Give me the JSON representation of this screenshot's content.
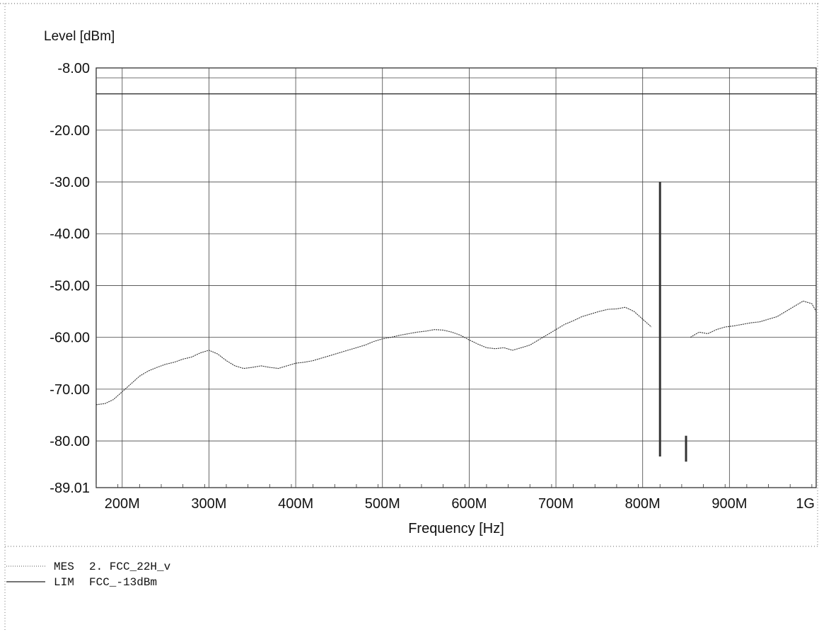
{
  "chart_data": {
    "type": "line",
    "title": "",
    "ylabel": "Level [dBm]",
    "xlabel": "Frequency [Hz]",
    "xlim": [
      170000000,
      1000000000
    ],
    "ylim": [
      -89.01,
      -8.0
    ],
    "x_ticks": [
      {
        "value": 200000000,
        "label": "200M"
      },
      {
        "value": 300000000,
        "label": "300M"
      },
      {
        "value": 400000000,
        "label": "400M"
      },
      {
        "value": 500000000,
        "label": "500M"
      },
      {
        "value": 600000000,
        "label": "600M"
      },
      {
        "value": 700000000,
        "label": "700M"
      },
      {
        "value": 800000000,
        "label": "800M"
      },
      {
        "value": 900000000,
        "label": "900M"
      },
      {
        "value": 1000000000,
        "label": "1G"
      }
    ],
    "y_ticks": [
      {
        "value": -8.0,
        "label": "-8.00"
      },
      {
        "value": -20.0,
        "label": "-20.00"
      },
      {
        "value": -30.0,
        "label": "-30.00"
      },
      {
        "value": -40.0,
        "label": "-40.00"
      },
      {
        "value": -50.0,
        "label": "-50.00"
      },
      {
        "value": -60.0,
        "label": "-60.00"
      },
      {
        "value": -70.0,
        "label": "-70.00"
      },
      {
        "value": -80.0,
        "label": "-80.00"
      },
      {
        "value": -89.01,
        "label": "-89.01"
      }
    ],
    "grid": true,
    "legend_position": "bottom-left",
    "series": [
      {
        "name": "MES",
        "legend_prefix": "MES",
        "legend_text": "2. FCC_22H_v",
        "style": "dotted",
        "segments": [
          {
            "x": [
              170000000,
              180000000,
              190000000,
              200000000,
              210000000,
              220000000,
              230000000,
              240000000,
              250000000,
              260000000,
              270000000,
              280000000,
              290000000,
              300000000,
              310000000,
              320000000,
              330000000,
              340000000,
              350000000,
              360000000,
              370000000,
              380000000,
              390000000,
              400000000,
              410000000,
              420000000,
              430000000,
              440000000,
              450000000,
              460000000,
              470000000,
              480000000,
              490000000,
              500000000,
              510000000,
              520000000,
              530000000,
              540000000,
              550000000,
              560000000,
              570000000,
              580000000,
              590000000,
              600000000,
              610000000,
              620000000,
              630000000,
              640000000,
              650000000,
              660000000,
              670000000,
              680000000,
              690000000,
              700000000,
              710000000,
              720000000,
              730000000,
              740000000,
              750000000,
              760000000,
              770000000,
              780000000,
              790000000,
              800000000,
              810000000
            ],
            "y": [
              -73.0,
              -72.8,
              -72.0,
              -70.5,
              -69.0,
              -67.5,
              -66.5,
              -65.8,
              -65.2,
              -64.8,
              -64.2,
              -63.8,
              -63.0,
              -62.5,
              -63.2,
              -64.5,
              -65.5,
              -66.0,
              -65.8,
              -65.5,
              -65.8,
              -66.0,
              -65.5,
              -65.0,
              -64.8,
              -64.5,
              -64.0,
              -63.5,
              -63.0,
              -62.5,
              -62.0,
              -61.5,
              -60.8,
              -60.3,
              -60.0,
              -59.6,
              -59.3,
              -59.0,
              -58.8,
              -58.5,
              -58.6,
              -59.0,
              -59.6,
              -60.5,
              -61.3,
              -62.0,
              -62.2,
              -62.0,
              -62.5,
              -62.0,
              -61.5,
              -60.5,
              -59.5,
              -58.5,
              -57.5,
              -56.8,
              -56.0,
              -55.5,
              -55.0,
              -54.6,
              -54.5,
              -54.2,
              -55.0,
              -56.5,
              -58.0
            ]
          },
          {
            "x": [
              820000000,
              820000000,
              820000000,
              820000000
            ],
            "y": [
              -30.0,
              -70.0,
              -80.0,
              -83.0
            ]
          },
          {
            "x": [
              850000000,
              850000000
            ],
            "y": [
              -79.0,
              -84.0
            ]
          },
          {
            "x": [
              855000000,
              865000000,
              875000000,
              885000000,
              895000000,
              905000000,
              915000000,
              925000000,
              935000000,
              945000000,
              955000000,
              965000000,
              975000000,
              985000000,
              995000000,
              1000000000
            ],
            "y": [
              -60.0,
              -59.0,
              -59.3,
              -58.5,
              -58.0,
              -57.8,
              -57.5,
              -57.2,
              -57.0,
              -56.5,
              -56.0,
              -55.0,
              -54.0,
              -53.0,
              -53.5,
              -55.0
            ]
          }
        ]
      },
      {
        "name": "LIM",
        "legend_prefix": "LIM",
        "legend_text": "FCC_-13dBm",
        "style": "solid",
        "segments": [
          {
            "x": [
              170000000,
              1000000000
            ],
            "y": [
              -13.0,
              -13.0
            ]
          }
        ]
      }
    ]
  }
}
